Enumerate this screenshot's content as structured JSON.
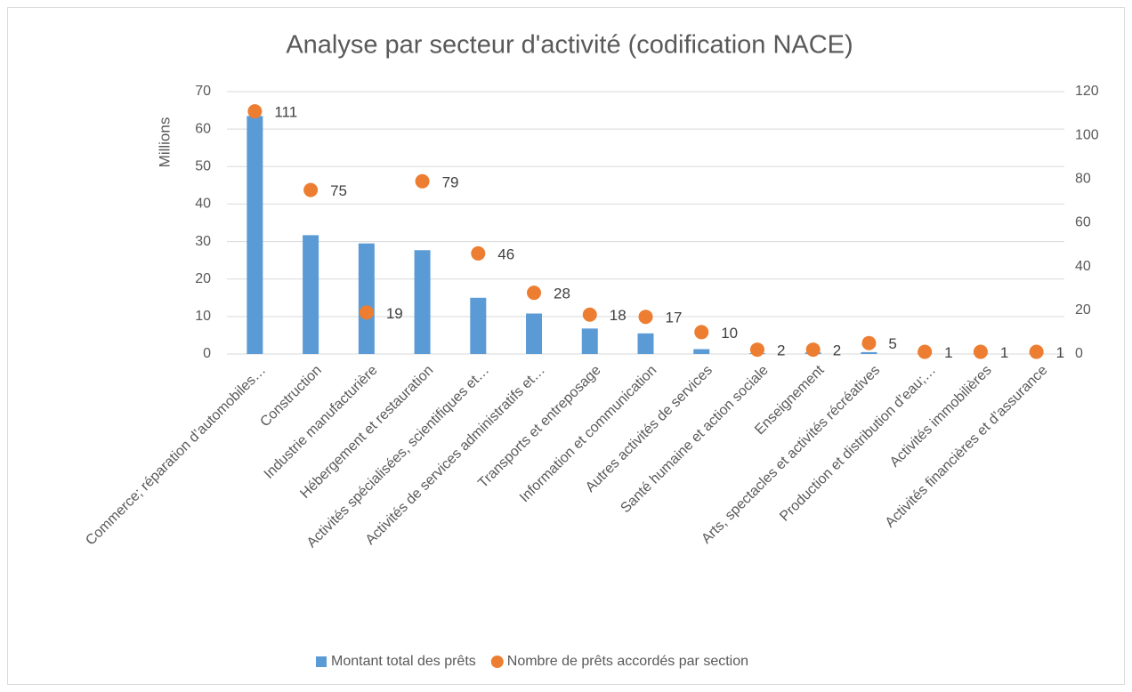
{
  "chart_data": {
    "type": "bar",
    "title": "Analyse par secteur d'activité (codification NACE)",
    "y_label": "Millions",
    "categories": [
      "Commerce; réparation d’automobiles…",
      "Construction",
      "Industrie manufacturière",
      "Hébergement et restauration",
      "Activités spécialisées, scientifiques et…",
      "Activités de services administratifs et…",
      "Transports et entreposage",
      "Information et communication",
      "Autres activités de services",
      "Santé humaine et action sociale",
      "Enseignement",
      "Arts, spectacles et activités récréatives",
      "Production  et  distribution  d’eau;…",
      "Activités immobilières",
      "Activités financières et d’assurance"
    ],
    "series": [
      {
        "name": "Montant total des prêts",
        "type": "bar",
        "color": "#5b9bd5",
        "values": [
          63.5,
          31.7,
          29.5,
          27.7,
          15,
          10.8,
          6.8,
          5.5,
          1.3,
          0.2,
          0.4,
          0.5,
          0.1,
          0.1,
          0.1
        ]
      },
      {
        "name": "Nombre de prêts accordés par section",
        "type": "scatter",
        "axis": "y2",
        "color": "#ed7d31",
        "values": [
          111,
          75,
          19,
          79,
          46,
          28,
          18,
          17,
          10,
          2,
          2,
          5,
          1,
          1,
          1
        ]
      }
    ],
    "ylim": [
      0,
      70
    ],
    "yticks": [
      0,
      10,
      20,
      30,
      40,
      50,
      60,
      70
    ],
    "y2lim": [
      0,
      120
    ],
    "y2ticks": [
      0,
      20,
      40,
      60,
      80,
      100,
      120
    ],
    "grid": true,
    "legend": "bottom"
  }
}
